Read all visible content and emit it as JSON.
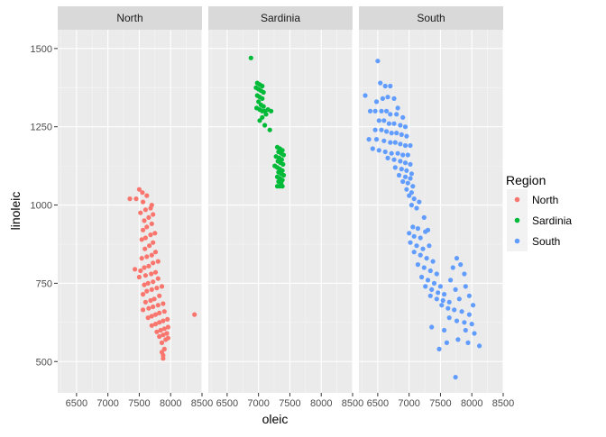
{
  "chart_data": {
    "type": "scatter",
    "facet_by": "Region",
    "panels": [
      "North",
      "Sardinia",
      "South"
    ],
    "xlabel": "oleic",
    "ylabel": "linoleic",
    "xlim": [
      6200,
      8500
    ],
    "ylim": [
      400,
      1560
    ],
    "x_ticks": [
      6500,
      7000,
      7500,
      8000,
      8500
    ],
    "y_ticks": [
      500,
      750,
      1000,
      1250,
      1500
    ],
    "grid": true,
    "legend": {
      "title": "Region",
      "position": "right",
      "entries": [
        "North",
        "Sardinia",
        "South"
      ]
    },
    "colors": {
      "North": "#F8766D",
      "Sardinia": "#00BA38",
      "South": "#619CFF"
    },
    "series": [
      {
        "name": "North",
        "points": [
          [
            7500,
            1050
          ],
          [
            7550,
            1040
          ],
          [
            7620,
            1030
          ],
          [
            7450,
            1020
          ],
          [
            7350,
            1020
          ],
          [
            7560,
            1010
          ],
          [
            7700,
            1000
          ],
          [
            7680,
            990
          ],
          [
            7600,
            985
          ],
          [
            7520,
            975
          ],
          [
            7720,
            970
          ],
          [
            7650,
            960
          ],
          [
            7580,
            950
          ],
          [
            7700,
            940
          ],
          [
            7620,
            930
          ],
          [
            7560,
            920
          ],
          [
            7750,
            910
          ],
          [
            7680,
            905
          ],
          [
            7600,
            895
          ],
          [
            7540,
            890
          ],
          [
            7720,
            880
          ],
          [
            7660,
            870
          ],
          [
            7590,
            860
          ],
          [
            7760,
            850
          ],
          [
            7700,
            840
          ],
          [
            7620,
            835
          ],
          [
            7540,
            830
          ],
          [
            7800,
            820
          ],
          [
            7720,
            815
          ],
          [
            7650,
            805
          ],
          [
            7580,
            800
          ],
          [
            7430,
            795
          ],
          [
            7520,
            790
          ],
          [
            7760,
            785
          ],
          [
            7690,
            780
          ],
          [
            7600,
            775
          ],
          [
            7500,
            770
          ],
          [
            7800,
            765
          ],
          [
            7720,
            755
          ],
          [
            7640,
            750
          ],
          [
            7580,
            745
          ],
          [
            7860,
            740
          ],
          [
            7780,
            735
          ],
          [
            7700,
            730
          ],
          [
            7620,
            725
          ],
          [
            7560,
            715
          ],
          [
            7820,
            710
          ],
          [
            7740,
            700
          ],
          [
            7680,
            695
          ],
          [
            7600,
            690
          ],
          [
            7880,
            685
          ],
          [
            7800,
            680
          ],
          [
            7720,
            675
          ],
          [
            7650,
            670
          ],
          [
            7560,
            665
          ],
          [
            7900,
            660
          ],
          [
            7820,
            655
          ],
          [
            7760,
            650
          ],
          [
            7700,
            645
          ],
          [
            7640,
            640
          ],
          [
            7950,
            635
          ],
          [
            7880,
            630
          ],
          [
            7820,
            625
          ],
          [
            7760,
            620
          ],
          [
            7700,
            615
          ],
          [
            7960,
            610
          ],
          [
            7900,
            605
          ],
          [
            7840,
            600
          ],
          [
            7780,
            595
          ],
          [
            7940,
            590
          ],
          [
            7880,
            585
          ],
          [
            7820,
            580
          ],
          [
            7960,
            575
          ],
          [
            7920,
            570
          ],
          [
            7860,
            560
          ],
          [
            7900,
            540
          ],
          [
            7860,
            530
          ],
          [
            7880,
            520
          ],
          [
            7880,
            510
          ],
          [
            8380,
            650
          ]
        ]
      },
      {
        "name": "Sardinia",
        "points": [
          [
            6880,
            1470
          ],
          [
            6980,
            1390
          ],
          [
            7020,
            1385
          ],
          [
            7060,
            1380
          ],
          [
            6960,
            1375
          ],
          [
            7000,
            1370
          ],
          [
            7040,
            1365
          ],
          [
            7080,
            1360
          ],
          [
            6980,
            1350
          ],
          [
            7020,
            1345
          ],
          [
            7060,
            1340
          ],
          [
            7000,
            1330
          ],
          [
            7040,
            1320
          ],
          [
            7080,
            1315
          ],
          [
            6970,
            1310
          ],
          [
            7020,
            1305
          ],
          [
            7060,
            1300
          ],
          [
            7100,
            1300
          ],
          [
            7150,
            1305
          ],
          [
            7200,
            1300
          ],
          [
            7120,
            1290
          ],
          [
            7060,
            1280
          ],
          [
            7020,
            1270
          ],
          [
            7100,
            1255
          ],
          [
            7180,
            1240
          ],
          [
            7300,
            1185
          ],
          [
            7340,
            1180
          ],
          [
            7380,
            1175
          ],
          [
            7320,
            1170
          ],
          [
            7360,
            1165
          ],
          [
            7400,
            1160
          ],
          [
            7280,
            1155
          ],
          [
            7330,
            1150
          ],
          [
            7370,
            1145
          ],
          [
            7310,
            1140
          ],
          [
            7350,
            1135
          ],
          [
            7390,
            1130
          ],
          [
            7260,
            1125
          ],
          [
            7300,
            1120
          ],
          [
            7340,
            1115
          ],
          [
            7380,
            1110
          ],
          [
            7320,
            1105
          ],
          [
            7360,
            1100
          ],
          [
            7400,
            1095
          ],
          [
            7300,
            1090
          ],
          [
            7340,
            1085
          ],
          [
            7380,
            1080
          ],
          [
            7320,
            1075
          ],
          [
            7360,
            1070
          ],
          [
            7340,
            1060
          ],
          [
            7380,
            1060
          ],
          [
            7300,
            1060
          ]
        ]
      },
      {
        "name": "South",
        "points": [
          [
            6500,
            1460
          ],
          [
            6300,
            1350
          ],
          [
            6620,
            1380
          ],
          [
            6700,
            1380
          ],
          [
            6540,
            1390
          ],
          [
            6480,
            1330
          ],
          [
            6580,
            1340
          ],
          [
            6660,
            1345
          ],
          [
            6760,
            1340
          ],
          [
            6820,
            1310
          ],
          [
            6380,
            1300
          ],
          [
            6460,
            1300
          ],
          [
            6560,
            1300
          ],
          [
            6640,
            1300
          ],
          [
            6700,
            1290
          ],
          [
            6800,
            1290
          ],
          [
            6900,
            1280
          ],
          [
            6520,
            1270
          ],
          [
            6600,
            1270
          ],
          [
            6680,
            1260
          ],
          [
            6760,
            1260
          ],
          [
            6860,
            1255
          ],
          [
            6940,
            1250
          ],
          [
            6460,
            1240
          ],
          [
            6560,
            1240
          ],
          [
            6640,
            1235
          ],
          [
            6720,
            1230
          ],
          [
            6800,
            1230
          ],
          [
            6880,
            1225
          ],
          [
            6960,
            1220
          ],
          [
            6360,
            1210
          ],
          [
            6480,
            1210
          ],
          [
            6600,
            1205
          ],
          [
            6700,
            1200
          ],
          [
            6780,
            1200
          ],
          [
            6860,
            1195
          ],
          [
            6940,
            1190
          ],
          [
            7020,
            1190
          ],
          [
            6420,
            1180
          ],
          [
            6520,
            1175
          ],
          [
            6620,
            1170
          ],
          [
            6720,
            1165
          ],
          [
            6820,
            1165
          ],
          [
            6900,
            1160
          ],
          [
            6980,
            1160
          ],
          [
            6660,
            1150
          ],
          [
            6760,
            1145
          ],
          [
            6860,
            1140
          ],
          [
            6940,
            1135
          ],
          [
            7020,
            1130
          ],
          [
            6780,
            1120
          ],
          [
            6880,
            1115
          ],
          [
            6960,
            1110
          ],
          [
            7040,
            1100
          ],
          [
            6840,
            1095
          ],
          [
            6940,
            1090
          ],
          [
            7020,
            1085
          ],
          [
            6900,
            1075
          ],
          [
            6980,
            1070
          ],
          [
            7060,
            1060
          ],
          [
            6960,
            1050
          ],
          [
            7040,
            1040
          ],
          [
            7000,
            1030
          ],
          [
            7080,
            1020
          ],
          [
            7160,
            1010
          ],
          [
            7040,
            1000
          ],
          [
            7120,
            990
          ],
          [
            7240,
            960
          ],
          [
            7060,
            930
          ],
          [
            7140,
            925
          ],
          [
            7260,
            915
          ],
          [
            7000,
            910
          ],
          [
            7080,
            900
          ],
          [
            7180,
            895
          ],
          [
            7300,
            920
          ],
          [
            7020,
            880
          ],
          [
            7120,
            870
          ],
          [
            7220,
            860
          ],
          [
            7320,
            870
          ],
          [
            7080,
            850
          ],
          [
            7180,
            840
          ],
          [
            7280,
            830
          ],
          [
            7380,
            820
          ],
          [
            7760,
            830
          ],
          [
            7140,
            810
          ],
          [
            7240,
            800
          ],
          [
            7340,
            790
          ],
          [
            7440,
            780
          ],
          [
            7700,
            800
          ],
          [
            7820,
            810
          ],
          [
            7200,
            770
          ],
          [
            7300,
            760
          ],
          [
            7400,
            750
          ],
          [
            7500,
            740
          ],
          [
            7660,
            760
          ],
          [
            7880,
            780
          ],
          [
            7260,
            740
          ],
          [
            7360,
            730
          ],
          [
            7460,
            720
          ],
          [
            7560,
            715
          ],
          [
            7740,
            730
          ],
          [
            7900,
            740
          ],
          [
            7340,
            710
          ],
          [
            7440,
            700
          ],
          [
            7540,
            695
          ],
          [
            7640,
            690
          ],
          [
            7800,
            700
          ],
          [
            7960,
            710
          ],
          [
            7520,
            680
          ],
          [
            7620,
            670
          ],
          [
            7720,
            665
          ],
          [
            7840,
            660
          ],
          [
            7960,
            650
          ],
          [
            8020,
            680
          ],
          [
            7640,
            640
          ],
          [
            7760,
            630
          ],
          [
            7880,
            625
          ],
          [
            8000,
            620
          ],
          [
            7900,
            600
          ],
          [
            8040,
            590
          ],
          [
            7360,
            610
          ],
          [
            7560,
            600
          ],
          [
            7780,
            570
          ],
          [
            7600,
            560
          ],
          [
            7480,
            540
          ],
          [
            7940,
            560
          ],
          [
            8120,
            550
          ],
          [
            7740,
            450
          ]
        ]
      }
    ]
  }
}
